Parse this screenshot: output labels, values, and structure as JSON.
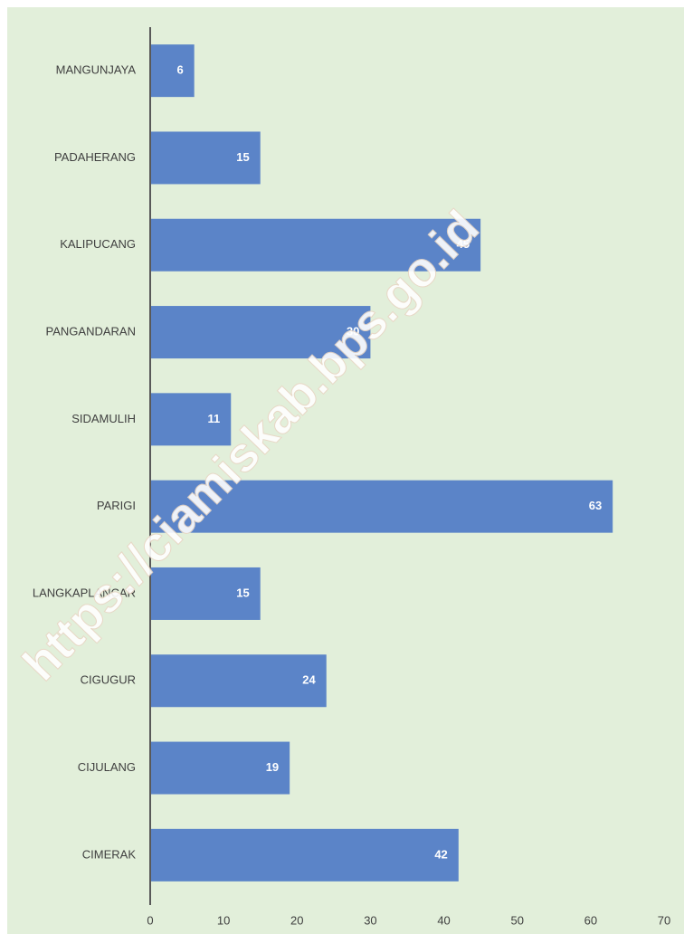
{
  "chart_data": {
    "type": "hbar",
    "categories": [
      "MANGUNJAYA",
      "PADAHERANG",
      "KALIPUCANG",
      "PANGANDARAN",
      "SIDAMULIH",
      "PARIGI",
      "LANGKAPLANCAR",
      "CIGUGUR",
      "CIJULANG",
      "CIMERAK"
    ],
    "values": [
      6,
      15,
      45,
      30,
      11,
      63,
      15,
      24,
      19,
      42
    ],
    "color": "#5b84c8",
    "xlim": [
      0,
      70
    ],
    "xticks": [
      0,
      10,
      20,
      30,
      40,
      50,
      60,
      70
    ],
    "watermark": "https://ciamiskab.bps.go.id"
  }
}
